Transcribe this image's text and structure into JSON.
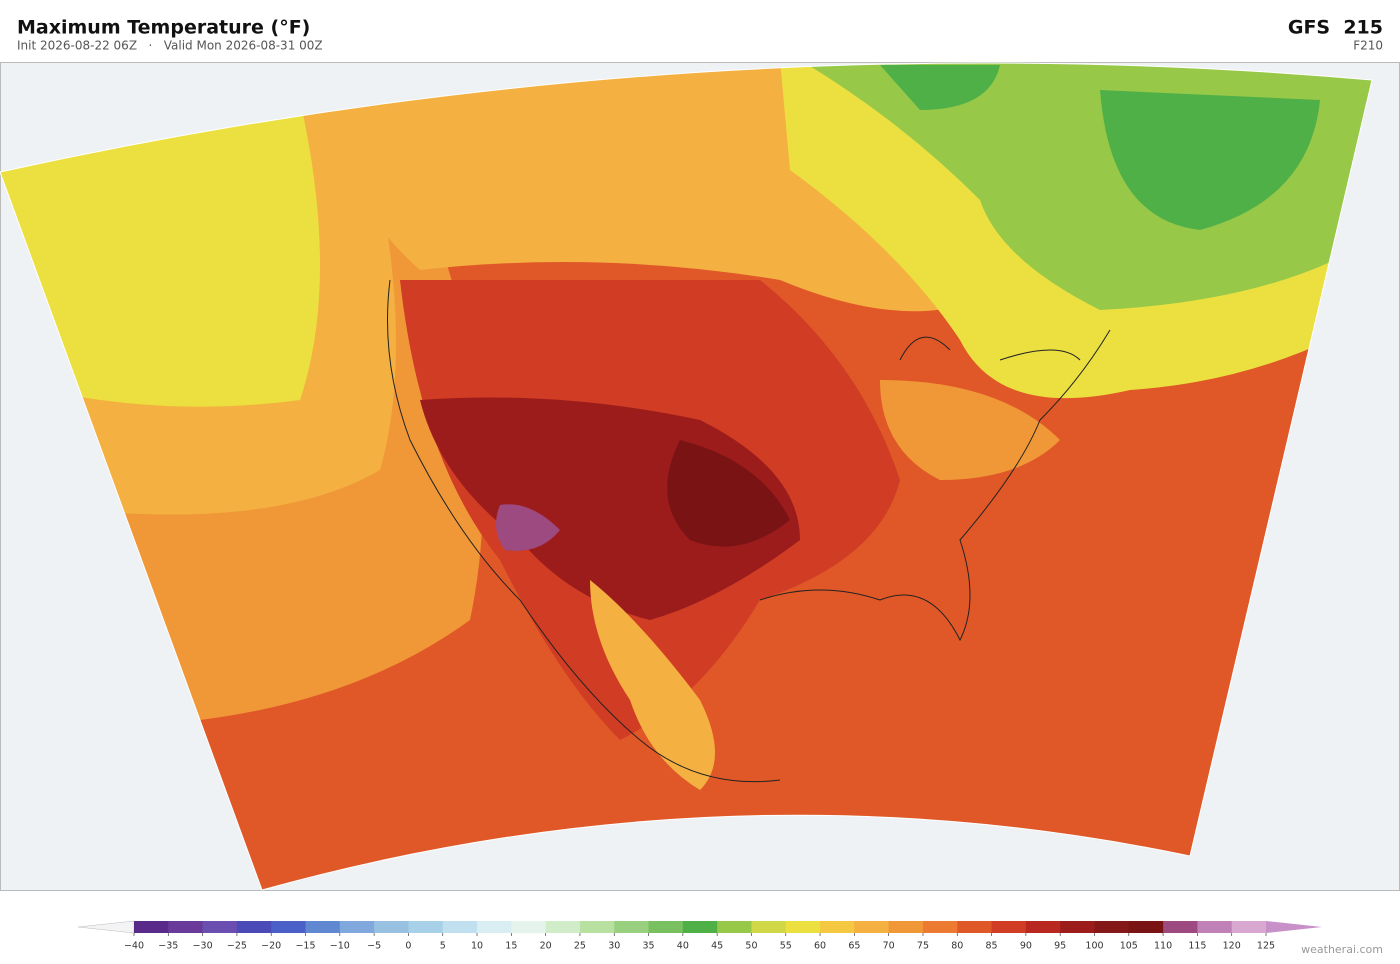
{
  "header": {
    "title": "Maximum Temperature  (°F)",
    "subtitle": "Init 2026-08-22 06Z   ·   Valid Mon 2026-08-31 00Z",
    "model": "GFS  215",
    "forecast_hour": "F210"
  },
  "colorbar": {
    "labels": [
      "−40",
      "−35",
      "−30",
      "−25",
      "−20",
      "−15",
      "−10",
      "−5",
      "0",
      "5",
      "10",
      "15",
      "20",
      "25",
      "30",
      "35",
      "40",
      "45",
      "50",
      "55",
      "60",
      "65",
      "70",
      "75",
      "80",
      "85",
      "90",
      "95",
      "100",
      "105",
      "110",
      "115",
      "120",
      "125"
    ],
    "colors": [
      "#5a2a8a",
      "#6a3a9a",
      "#6b4fb0",
      "#4a4ab8",
      "#4a60c8",
      "#6088d0",
      "#80a8dc",
      "#98c0e0",
      "#a8d0e8",
      "#c0e0f0",
      "#d8eef2",
      "#e4f4ec",
      "#d0ecc8",
      "#b8e0a0",
      "#98d080",
      "#78c060",
      "#50b048",
      "#98c848",
      "#d0d848",
      "#ece040",
      "#f4c840",
      "#f4b040",
      "#f09838",
      "#ec7a30",
      "#e05828",
      "#d03c24",
      "#b82820",
      "#9c1c1c",
      "#841818",
      "#7a1414",
      "#9c4a80",
      "#c080b8",
      "#d8a8d0"
    ],
    "under_color": "#f4f4f6",
    "over_color": "#c890c8"
  },
  "watermark": "weatherai.com"
}
